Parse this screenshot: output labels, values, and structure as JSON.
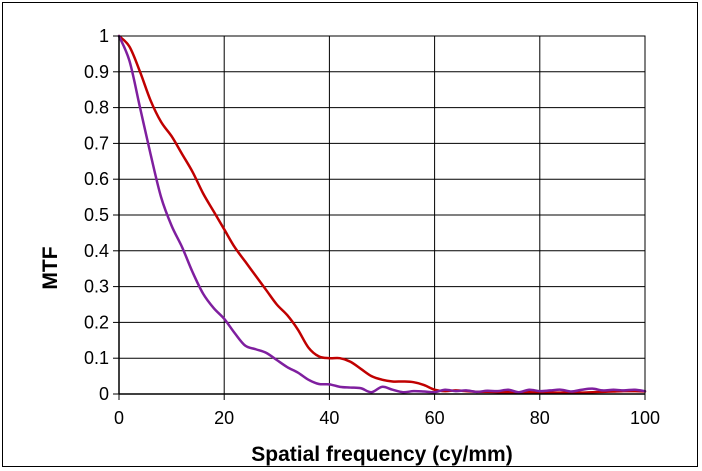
{
  "chart_data": {
    "type": "line",
    "title": "",
    "xlabel": "Spatial frequency (cy/mm)",
    "ylabel": "MTF",
    "xlim": [
      0,
      100
    ],
    "ylim": [
      0,
      1
    ],
    "x_ticks": [
      "0",
      "20",
      "40",
      "60",
      "80",
      "100"
    ],
    "y_ticks": [
      "0",
      "0.1",
      "0.2",
      "0.3",
      "0.4",
      "0.5",
      "0.6",
      "0.7",
      "0.8",
      "0.9",
      "1"
    ],
    "grid": true,
    "legend": "none",
    "series": [
      {
        "color": "#c00000",
        "x": [
          0,
          2,
          4,
          6,
          8,
          10,
          12,
          14,
          16,
          18,
          20,
          22,
          24,
          26,
          28,
          30,
          32,
          34,
          36,
          38,
          40,
          42,
          44,
          46,
          48,
          50,
          52,
          54,
          56,
          58,
          60,
          62,
          64,
          66,
          68,
          70,
          72,
          74,
          76,
          78,
          80,
          82,
          84,
          86,
          88,
          90,
          92,
          94,
          96,
          98,
          100
        ],
        "values": [
          1.0,
          0.97,
          0.9,
          0.82,
          0.76,
          0.72,
          0.67,
          0.62,
          0.56,
          0.51,
          0.46,
          0.41,
          0.37,
          0.33,
          0.29,
          0.25,
          0.22,
          0.18,
          0.13,
          0.105,
          0.1,
          0.1,
          0.09,
          0.07,
          0.05,
          0.04,
          0.035,
          0.035,
          0.033,
          0.025,
          0.012,
          0.008,
          0.01,
          0.008,
          0.006,
          0.006,
          0.005,
          0.005,
          0.004,
          0.005,
          0.004,
          0.004,
          0.004,
          0.005,
          0.004,
          0.005,
          0.006,
          0.007,
          0.008,
          0.008,
          0.007
        ]
      },
      {
        "color": "#7f1f9f",
        "x": [
          0,
          2,
          4,
          6,
          8,
          10,
          12,
          14,
          16,
          18,
          20,
          22,
          24,
          26,
          28,
          30,
          32,
          34,
          36,
          38,
          40,
          42,
          44,
          46,
          48,
          50,
          52,
          54,
          56,
          58,
          60,
          62,
          64,
          66,
          68,
          70,
          72,
          74,
          76,
          78,
          80,
          82,
          84,
          86,
          88,
          90,
          92,
          94,
          96,
          98,
          100
        ],
        "values": [
          1.0,
          0.93,
          0.8,
          0.67,
          0.55,
          0.47,
          0.41,
          0.34,
          0.28,
          0.24,
          0.21,
          0.17,
          0.135,
          0.125,
          0.115,
          0.095,
          0.075,
          0.06,
          0.04,
          0.028,
          0.027,
          0.02,
          0.018,
          0.016,
          0.005,
          0.02,
          0.012,
          0.005,
          0.008,
          0.007,
          0.005,
          0.012,
          0.008,
          0.01,
          0.006,
          0.009,
          0.008,
          0.012,
          0.005,
          0.012,
          0.008,
          0.01,
          0.012,
          0.007,
          0.012,
          0.015,
          0.01,
          0.012,
          0.01,
          0.012,
          0.008
        ]
      }
    ]
  }
}
